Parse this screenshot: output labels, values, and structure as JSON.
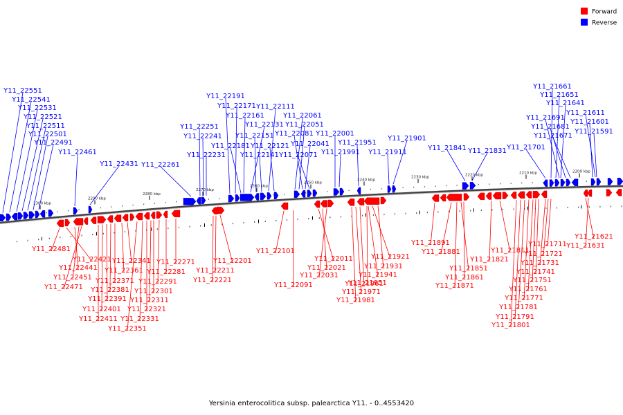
{
  "caption": "Yersinia enterocolitica subsp. palearctica Y11. - 0..4553420",
  "colors": {
    "forward": "#ff0000",
    "reverse": "#0000ff",
    "backbone": "#888888"
  },
  "legend": [
    {
      "label": "Forward",
      "color": "#ff0000"
    },
    {
      "label": "Reverse",
      "color": "#0000ff"
    }
  ],
  "scale_ticks": [
    "2300 kbp",
    "2290 kbp",
    "2280 kbp",
    "2270 kbp",
    "2260 kbp",
    "2250 kbp",
    "2240 kbp",
    "2230 kbp",
    "2220 kbp",
    "2210 kbp",
    "2200 kbp"
  ],
  "reverse_genes": [
    "Y11_22551",
    "Y11_22541",
    "Y11_22531",
    "Y11_22521",
    "Y11_22511",
    "Y11_22501",
    "Y11_22491",
    "Y11_22461",
    "Y11_22431",
    "Y11_22261",
    "Y11_22251",
    "Y11_22241",
    "Y11_22231",
    "Y11_22191",
    "Y11_22171",
    "Y11_22181",
    "Y11_22161",
    "Y11_22131",
    "Y11_22151",
    "Y11_22141",
    "Y11_22111",
    "Y11_22121",
    "Y11_22061",
    "Y11_22051",
    "Y11_22081",
    "Y11_22041",
    "Y11_22071",
    "Y11_22001",
    "Y11_21991",
    "Y11_21951",
    "Y11_21911",
    "Y11_21901",
    "Y11_21841",
    "Y11_21831",
    "Y11_21701",
    "Y11_21661",
    "Y11_21651",
    "Y11_21641",
    "Y11_21691",
    "Y11_21611",
    "Y11_21681",
    "Y11_21601",
    "Y11_21671",
    "Y11_21591"
  ],
  "forward_genes": [
    "Y11_22481",
    "Y11_22421",
    "Y11_22441",
    "Y11_22451",
    "Y11_22471",
    "Y11_22341",
    "Y11_22361",
    "Y11_22371",
    "Y11_22381",
    "Y11_22391",
    "Y11_22401",
    "Y11_22411",
    "Y11_22271",
    "Y11_22281",
    "Y11_22291",
    "Y11_22301",
    "Y11_22311",
    "Y11_22321",
    "Y11_22331",
    "Y11_22351",
    "Y11_22201",
    "Y11_22211",
    "Y11_22221",
    "Y11_22101",
    "Y11_22091",
    "Y11_22011",
    "Y11_22021",
    "Y11_22031",
    "Y11_21921",
    "Y11_21931",
    "Y11_21941",
    "Y11_21951",
    "Y11_21961",
    "Y11_21971",
    "Y11_21981",
    "Y11_21891",
    "Y11_21881",
    "Y11_21851",
    "Y11_21861",
    "Y11_21871",
    "Y11_21821",
    "Y11_21811",
    "Y11_21711",
    "Y11_21721",
    "Y11_21731",
    "Y11_21741",
    "Y11_21751",
    "Y11_21761",
    "Y11_21771",
    "Y11_21781",
    "Y11_21791",
    "Y11_21801",
    "Y11_21621",
    "Y11_21631"
  ]
}
